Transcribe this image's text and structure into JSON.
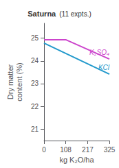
{
  "chart_data": {
    "type": "line",
    "title": "Saturna",
    "subtitle": "(11 expts.)",
    "xlabel": "kg K₂O/ha",
    "ylabel": "Dry matter\ncontent (%)",
    "xlim": [
      0,
      325
    ],
    "xticks": [
      0,
      108,
      217,
      325
    ],
    "ylim": [
      20.5,
      25.65
    ],
    "yticks": [
      21,
      22,
      23,
      24,
      25
    ],
    "grid": false,
    "series": [
      {
        "name": "K₂SO₄",
        "color": "#cc44cc",
        "x": [
          0,
          108,
          325
        ],
        "values": [
          24.93,
          24.93,
          24.08
        ]
      },
      {
        "name": "KCl",
        "color": "#2299cc",
        "x": [
          0,
          325
        ],
        "values": [
          24.78,
          23.42
        ]
      }
    ]
  }
}
